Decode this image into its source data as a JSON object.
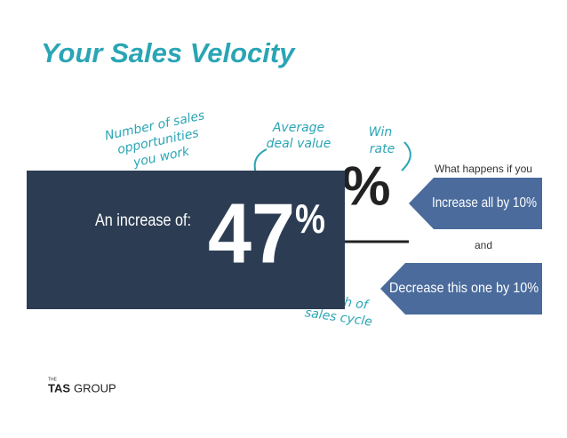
{
  "title": "Your Sales Velocity",
  "annotations": {
    "opportunities": [
      "Number of sales",
      "opportunities",
      "you work"
    ],
    "deal_value": [
      "Average",
      "deal value"
    ],
    "win_rate": [
      "Win",
      "rate"
    ],
    "cycle": [
      "gth of",
      "sales cycle"
    ]
  },
  "formula_symbol": "%",
  "callouts": {
    "intro": "What happens if you",
    "increase": "Increase all by 10%",
    "joiner": "and",
    "decrease": "Decrease this one by 10%"
  },
  "result": {
    "label": "An increase of:",
    "number": "47",
    "unit": "%"
  },
  "logo": {
    "small": "THE",
    "brand": "TAS",
    "rest": "GROUP"
  }
}
